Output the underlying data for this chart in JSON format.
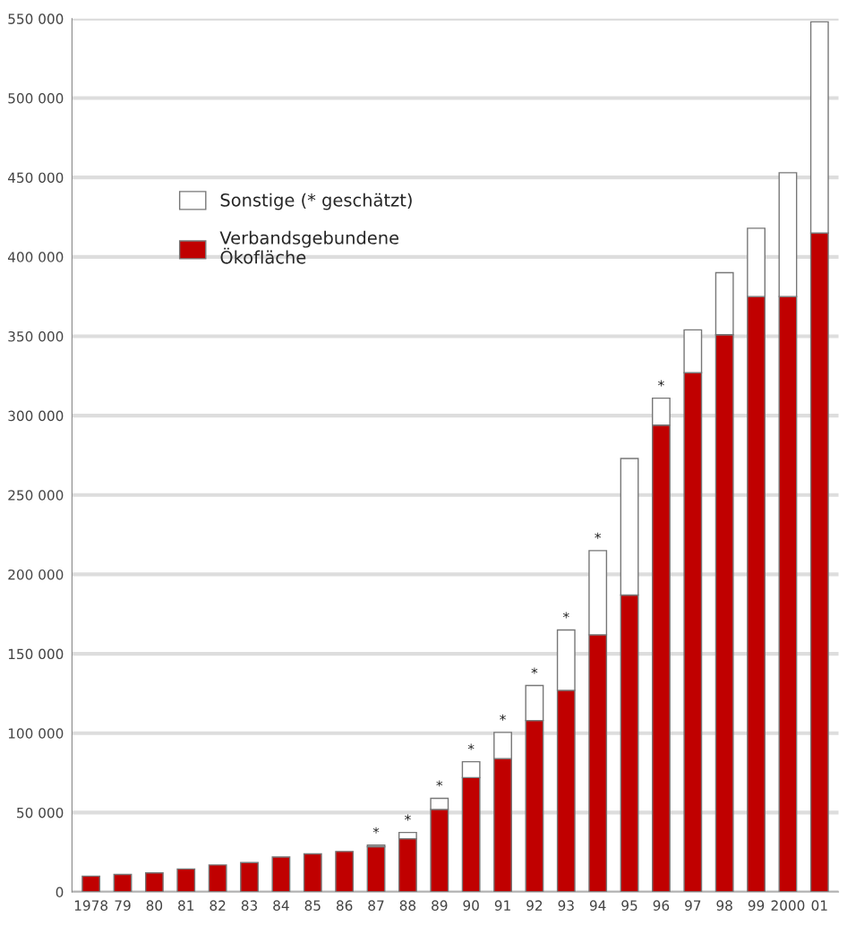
{
  "chart_data": {
    "type": "bar",
    "stacked": true,
    "categories": [
      "1978",
      "79",
      "80",
      "81",
      "82",
      "83",
      "84",
      "85",
      "86",
      "87",
      "88",
      "89",
      "90",
      "91",
      "92",
      "93",
      "94",
      "95",
      "96",
      "97",
      "98",
      "99",
      "2000",
      "01"
    ],
    "series": [
      {
        "name": "Verbandsgebundene\nÖkofläche",
        "color": "#c00000",
        "values": [
          10000,
          11000,
          12000,
          14500,
          17000,
          18500,
          22000,
          24000,
          25500,
          28500,
          33500,
          52000,
          72000,
          84000,
          108000,
          127000,
          162000,
          187000,
          294000,
          327000,
          351000,
          375000,
          375000,
          415000
        ]
      },
      {
        "name": "Sonstige (* geschätzt)",
        "color": "#ffffff",
        "values": [
          null,
          null,
          null,
          null,
          null,
          null,
          null,
          null,
          null,
          1000,
          4000,
          7000,
          10000,
          16500,
          22000,
          38000,
          53000,
          86000,
          17000,
          27000,
          39000,
          43000,
          78000,
          133000
        ]
      }
    ],
    "ylim": [
      0,
      550000
    ],
    "yticks": [
      {
        "value": 0,
        "label": "0"
      },
      {
        "value": 50000,
        "label": "50 000"
      },
      {
        "value": 100000,
        "label": "100 000"
      },
      {
        "value": 150000,
        "label": "150 000"
      },
      {
        "value": 200000,
        "label": "200 000"
      },
      {
        "value": 250000,
        "label": "250 000"
      },
      {
        "value": 300000,
        "label": "300 000"
      },
      {
        "value": 350000,
        "label": "350 000"
      },
      {
        "value": 400000,
        "label": "400 000"
      },
      {
        "value": 450000,
        "label": "450 000"
      },
      {
        "value": 500000,
        "label": "500 000"
      },
      {
        "value": 550000,
        "label": "550 000"
      }
    ],
    "grid": "y",
    "legend": "top left",
    "annotations": [
      {
        "text": "*",
        "x": "87",
        "y": 29500
      },
      {
        "text": "*",
        "x": "88",
        "y": 37500
      },
      {
        "text": "*",
        "x": "89",
        "y": 59000
      },
      {
        "text": "*",
        "x": "90",
        "y": 82000
      },
      {
        "text": "*",
        "x": "91",
        "y": 100500
      },
      {
        "text": "*",
        "x": "92",
        "y": 130000
      },
      {
        "text": "*",
        "x": "93",
        "y": 165000
      },
      {
        "text": "*",
        "x": "94",
        "y": 215000
      },
      {
        "text": "*",
        "x": "96",
        "y": 311000
      }
    ]
  }
}
